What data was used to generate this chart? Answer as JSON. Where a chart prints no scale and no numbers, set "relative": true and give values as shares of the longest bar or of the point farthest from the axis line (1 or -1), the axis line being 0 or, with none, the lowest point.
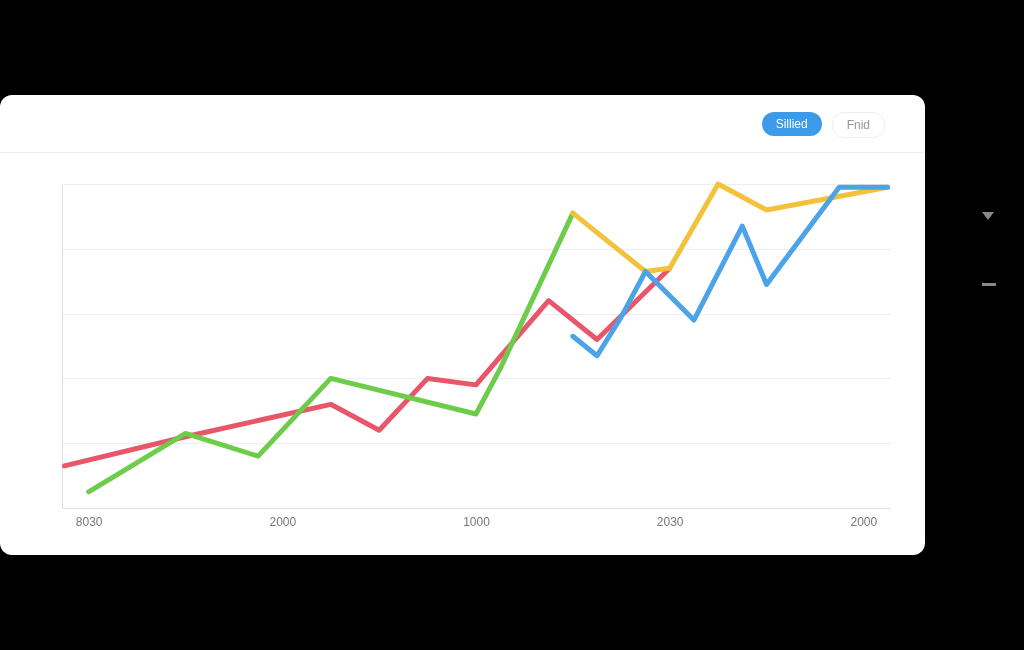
{
  "chart_data": {
    "type": "line",
    "relative": true,
    "grid": "y",
    "legend": false,
    "marker": "none",
    "line_style": "solid",
    "annotations": [
      "Sillied",
      "Fnid"
    ],
    "categories": [
      null,
      "8030",
      null,
      null,
      null,
      null,
      null,
      null,
      null,
      "2000",
      null,
      null,
      null,
      null,
      null,
      null,
      null,
      "1000",
      null,
      null,
      null,
      null,
      null,
      null,
      null,
      "2030",
      null,
      null,
      null,
      null,
      null,
      null,
      null,
      "2000",
      null
    ],
    "series": [
      {
        "color": "#e8566a",
        "values": [
          0.13,
          null,
          null,
          null,
          null,
          0.22,
          null,
          null,
          0.27,
          null,
          null,
          0.32,
          null,
          0.24,
          null,
          0.4,
          null,
          0.38,
          null,
          null,
          0.64,
          null,
          0.52,
          null,
          null,
          0.74,
          null,
          null,
          null,
          null,
          null,
          null,
          null,
          null,
          null
        ]
      },
      {
        "color": "#6dcc4a",
        "values": [
          null,
          0.05,
          null,
          null,
          null,
          0.23,
          null,
          null,
          0.16,
          null,
          null,
          0.4,
          null,
          null,
          null,
          null,
          null,
          0.29,
          0.43,
          null,
          null,
          0.91,
          null,
          null,
          null,
          null,
          null,
          null,
          null,
          null,
          null,
          null,
          null,
          null,
          null
        ]
      },
      {
        "color": "#f4c23a",
        "values": [
          null,
          null,
          null,
          null,
          null,
          null,
          null,
          null,
          null,
          null,
          null,
          null,
          null,
          null,
          null,
          null,
          null,
          null,
          null,
          null,
          null,
          0.91,
          null,
          null,
          0.73,
          0.74,
          null,
          1,
          null,
          0.92,
          null,
          null,
          null,
          null,
          0.99
        ]
      },
      {
        "color": "#4da3e8",
        "values": [
          null,
          null,
          null,
          null,
          null,
          null,
          null,
          null,
          null,
          null,
          null,
          null,
          null,
          null,
          null,
          null,
          null,
          null,
          null,
          null,
          null,
          0.53,
          0.47,
          0.59,
          0.73,
          null,
          0.58,
          null,
          0.87,
          0.69,
          null,
          null,
          0.99,
          null,
          0.99
        ]
      }
    ]
  }
}
